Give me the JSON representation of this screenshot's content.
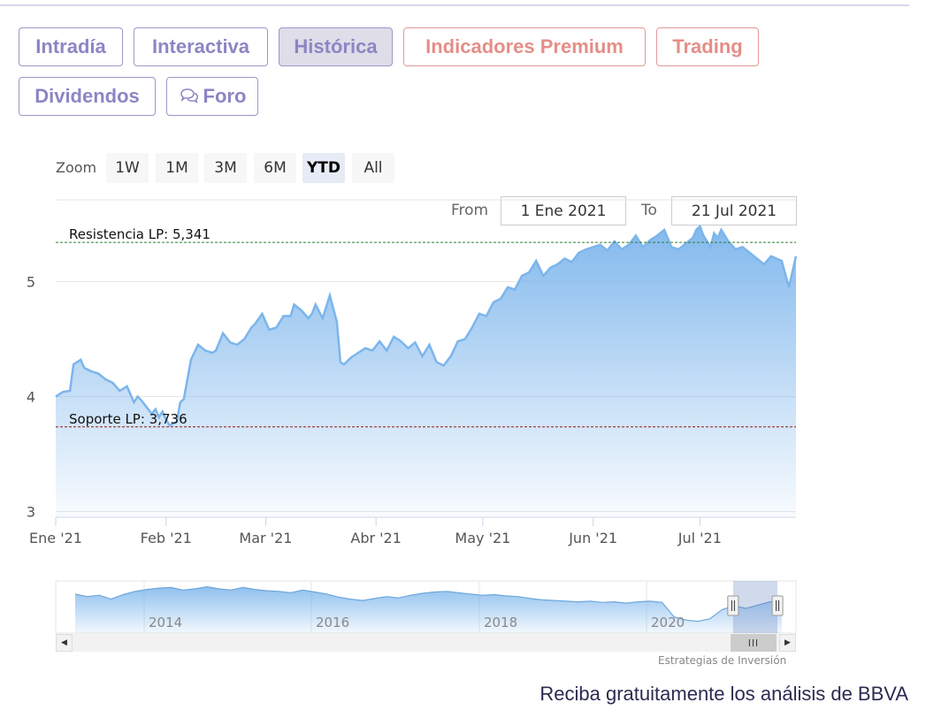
{
  "tabs": [
    {
      "label": "Intradía",
      "state": "normal"
    },
    {
      "label": "Interactiva",
      "state": "normal"
    },
    {
      "label": "Histórica",
      "state": "active"
    },
    {
      "label": "Indicadores Premium",
      "state": "premium"
    },
    {
      "label": "Trading",
      "state": "premium"
    },
    {
      "label": "Dividendos",
      "state": "normal"
    },
    {
      "label": "Foro",
      "state": "normal",
      "icon": "chat-bubbles-icon"
    }
  ],
  "zoom": {
    "label": "Zoom",
    "buttons": [
      "1W",
      "1M",
      "3M",
      "6M",
      "YTD",
      "All"
    ],
    "selected": "YTD"
  },
  "range": {
    "from_label": "From",
    "from_value": "1 Ene 2021",
    "to_label": "To",
    "to_value": "21 Jul 2021"
  },
  "chart_data": {
    "type": "area",
    "title": "",
    "xlabel": "",
    "ylabel": "",
    "ylim": [
      2.95,
      5.68
    ],
    "yticks": [
      3,
      4,
      5
    ],
    "ytick_labels": [
      "3",
      "4",
      "5"
    ],
    "xticks": [
      "Ene '21",
      "Feb '21",
      "Mar '21",
      "Abr '21",
      "May '21",
      "Jun '21",
      "Jul '21"
    ],
    "xtick_days": [
      0,
      31,
      59,
      90,
      120,
      151,
      181
    ],
    "x_unit": "days since 1 Ene 2021",
    "x_range": [
      0,
      208
    ],
    "series": [
      {
        "name": "",
        "color": "#7cb5ec",
        "x": [
          0,
          2,
          4,
          5,
          7,
          8,
          10,
          12,
          14,
          16,
          18,
          20,
          21,
          22,
          23,
          24,
          25,
          27,
          28,
          29,
          30,
          31,
          32,
          34,
          35,
          36,
          38,
          40,
          42,
          44,
          45,
          47,
          49,
          51,
          53,
          55,
          56,
          58,
          60,
          62,
          64,
          66,
          67,
          69,
          71,
          72,
          73,
          75,
          77,
          79,
          80,
          81,
          83,
          85,
          87,
          89,
          91,
          93,
          95,
          97,
          99,
          101,
          103,
          105,
          107,
          109,
          111,
          113,
          115,
          117,
          119,
          121,
          123,
          125,
          127,
          129,
          131,
          133,
          135,
          137,
          139,
          141,
          143,
          145,
          147,
          149,
          151,
          153,
          155,
          157,
          159,
          161,
          163,
          165,
          167,
          169,
          171,
          173,
          175,
          177,
          179,
          180,
          181,
          182,
          183,
          184,
          185,
          186,
          187,
          189,
          191,
          193,
          195,
          197,
          199,
          201,
          204,
          206,
          208
        ],
        "y": [
          4.0,
          4.04,
          4.05,
          4.28,
          4.32,
          4.25,
          4.22,
          4.2,
          4.15,
          4.12,
          4.05,
          4.09,
          4.02,
          3.95,
          4.0,
          3.97,
          3.93,
          3.85,
          3.89,
          3.82,
          3.87,
          3.8,
          3.75,
          3.78,
          3.95,
          3.98,
          4.32,
          4.45,
          4.4,
          4.38,
          4.4,
          4.55,
          4.47,
          4.45,
          4.5,
          4.6,
          4.63,
          4.72,
          4.58,
          4.6,
          4.7,
          4.7,
          4.8,
          4.75,
          4.68,
          4.72,
          4.8,
          4.68,
          4.88,
          4.65,
          4.3,
          4.28,
          4.34,
          4.38,
          4.42,
          4.4,
          4.48,
          4.4,
          4.52,
          4.48,
          4.42,
          4.47,
          4.35,
          4.45,
          4.3,
          4.27,
          4.35,
          4.48,
          4.5,
          4.6,
          4.72,
          4.7,
          4.82,
          4.85,
          4.95,
          4.93,
          5.05,
          5.08,
          5.18,
          5.05,
          5.12,
          5.15,
          5.2,
          5.17,
          5.25,
          5.28,
          5.3,
          5.32,
          5.27,
          5.35,
          5.28,
          5.32,
          5.4,
          5.3,
          5.36,
          5.4,
          5.45,
          5.3,
          5.28,
          5.33,
          5.38,
          5.45,
          5.48,
          5.4,
          5.35,
          5.3,
          5.42,
          5.38,
          5.45,
          5.35,
          5.28,
          5.3,
          5.25,
          5.2,
          5.15,
          5.22,
          5.18,
          4.95,
          5.22
        ]
      }
    ],
    "plot_lines": [
      {
        "label": "Resistencia LP: 5,341",
        "value": 5.341,
        "color": "#2e7d32",
        "style": "dashed"
      },
      {
        "label": "Soporte LP: 3,736",
        "value": 3.736,
        "color": "#8b1a1a",
        "style": "dashed"
      }
    ],
    "navigator": {
      "labels": [
        "2014",
        "2016",
        "2018",
        "2020"
      ],
      "points": [
        8.0,
        7.6,
        7.8,
        7.2,
        7.9,
        8.4,
        8.7,
        8.9,
        9.0,
        8.6,
        8.8,
        9.1,
        8.8,
        8.6,
        9.0,
        8.7,
        8.5,
        8.4,
        8.2,
        8.6,
        8.3,
        8.0,
        7.5,
        7.2,
        7.0,
        7.3,
        7.6,
        7.4,
        7.8,
        8.1,
        8.3,
        8.4,
        8.2,
        8.0,
        7.8,
        7.9,
        7.7,
        7.6,
        7.3,
        7.1,
        7.0,
        6.9,
        6.8,
        6.9,
        6.7,
        6.8,
        6.6,
        6.8,
        6.9,
        6.7,
        4.5,
        4.0,
        3.8,
        4.2,
        5.6,
        6.2,
        5.8,
        6.3,
        6.8,
        7.0
      ],
      "selection": [
        0.915,
        0.975
      ]
    },
    "grid": true,
    "legend": "none"
  },
  "credit": "Estrategias de Inversión",
  "promo": "Reciba gratuitamente los análisis de BBVA"
}
